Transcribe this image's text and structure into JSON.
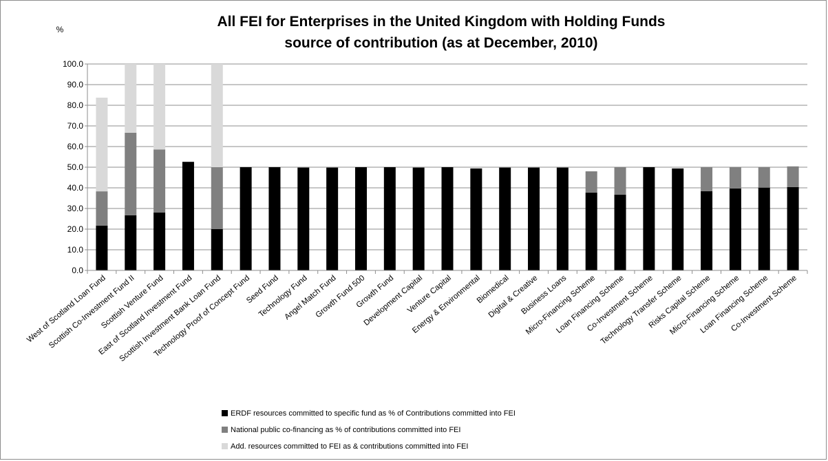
{
  "chart_data": {
    "type": "bar",
    "stacked": true,
    "title_lines": [
      "All FEI for Enterprises in the United Kingdom with Holding Funds",
      "source of contribution (as at December, 2010)"
    ],
    "y_unit": "%",
    "ylim": [
      0,
      100
    ],
    "yticks": [
      "0.0",
      "10.0",
      "20.0",
      "30.0",
      "40.0",
      "50.0",
      "60.0",
      "70.0",
      "80.0",
      "90.0",
      "100.0"
    ],
    "grid": true,
    "legend_position": "bottom",
    "categories": [
      "West of Scotland Loan Fund",
      "Scottish Co-Investment Fund II",
      "Scottish Venture Fund",
      "East of Scotland Investment Fund",
      "Scottish Investment Bank Loan Fund",
      "Technology Proof of Concept Fund",
      "Seed Fund",
      "Technology Fund",
      "Angel Match Fund",
      "Growth Fund 500",
      "Growth Fund",
      "Development Capital",
      "Venture Capital",
      "Energy & Environmental",
      "Biomedical",
      "Digital & Creative",
      "Business Loans",
      "Micro-Financing Scheme",
      "Loan Financing Scheme",
      "Co-Investment Scheme",
      "Technology Transfer Scheme",
      "Risks Capital Scheme",
      "Micro-Financing Scheme",
      "Loan Financing Scheme",
      "Co-Investment Scheme"
    ],
    "series": [
      {
        "name": "ERDF resources committed to specific fund as % of Contributions committed into FEI",
        "color": "#000000",
        "values": [
          21.7,
          26.7,
          28.0,
          52.6,
          20.0,
          50.0,
          50.0,
          49.8,
          49.8,
          50.0,
          50.0,
          49.8,
          50.0,
          49.4,
          49.8,
          49.8,
          49.8,
          37.7,
          36.7,
          50.0,
          49.4,
          38.4,
          39.7,
          40.1,
          40.4
        ]
      },
      {
        "name": "National public co-financing as % of contributions committed into FEI",
        "color": "#808080",
        "values": [
          16.6,
          40.0,
          30.6,
          0,
          30.0,
          0,
          0,
          0,
          0,
          0,
          0,
          0,
          0,
          0,
          0,
          0,
          0,
          10.3,
          13.3,
          0,
          0,
          11.6,
          10.3,
          9.9,
          10.0
        ]
      },
      {
        "name": "Add. resources committed to FEI as & contributions committed into FEI",
        "color": "#d9d9d9",
        "values": [
          45.4,
          33.3,
          41.4,
          0,
          50.0,
          0,
          0,
          0,
          0,
          0,
          0,
          0,
          0,
          0,
          0,
          0,
          0,
          0,
          0,
          0,
          0,
          0,
          0,
          0,
          0
        ]
      }
    ]
  }
}
